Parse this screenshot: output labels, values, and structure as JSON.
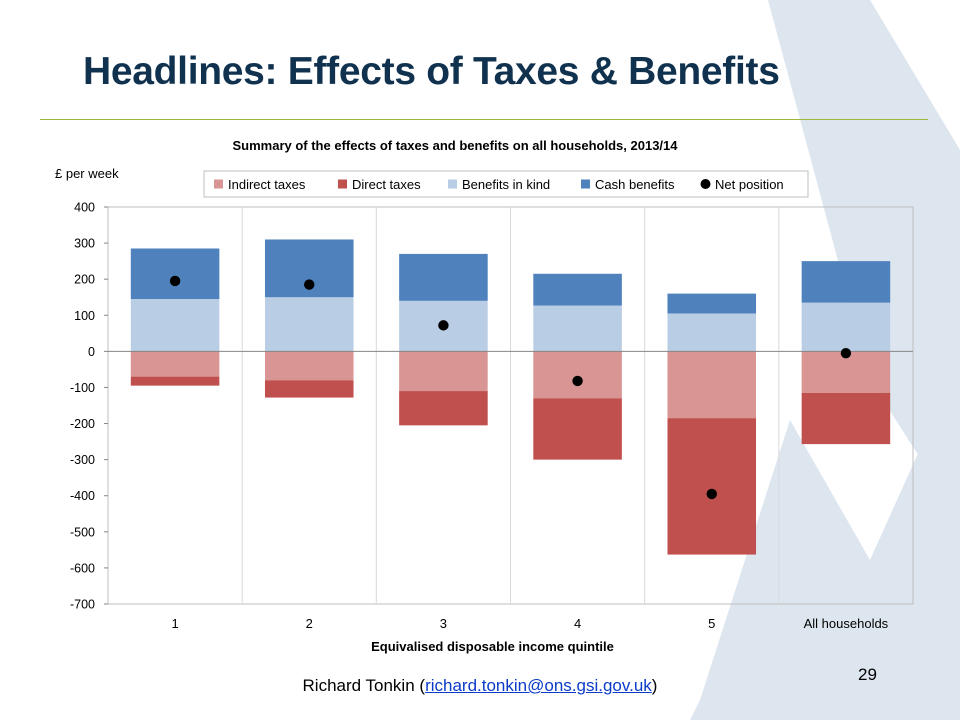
{
  "slide": {
    "title": "Headlines: Effects of Taxes & Benefits",
    "page_number": "29",
    "footer": {
      "author": "Richard Tonkin",
      "open_paren": " (",
      "email": "richard.tonkin@ons.gsi.gov.uk",
      "close_paren": ")"
    }
  },
  "colors": {
    "indirect_taxes": "#d99594",
    "direct_taxes": "#c0504d",
    "benefits_in_kind": "#b9cde5",
    "cash_benefits": "#4f81bd",
    "net_position": "#000000",
    "title": "#10324f",
    "rule": "#9bb83a",
    "background_mark": "#dde6ef"
  },
  "chart_data": {
    "type": "bar",
    "stacked": true,
    "title": "Summary of the effects of taxes and benefits on all households, 2013/14",
    "ylabel": "£ per week",
    "xlabel": "Equivalised disposable income quintile",
    "categories": [
      "1",
      "2",
      "3",
      "4",
      "5",
      "All households"
    ],
    "ylim": [
      -700,
      400
    ],
    "yticks": [
      400,
      300,
      200,
      100,
      0,
      -100,
      -200,
      -300,
      -400,
      -500,
      -600,
      -700
    ],
    "grid": "vertical category dividers",
    "legend_position": "top",
    "series": [
      {
        "name": "Indirect taxes",
        "key": "indirect_taxes",
        "values": [
          -70,
          -80,
          -110,
          -130,
          -185,
          -115
        ]
      },
      {
        "name": "Direct taxes",
        "key": "direct_taxes",
        "values": [
          -25,
          -48,
          -95,
          -170,
          -378,
          -142
        ]
      },
      {
        "name": "Benefits in kind",
        "key": "benefits_in_kind",
        "values": [
          145,
          150,
          140,
          127,
          105,
          135
        ]
      },
      {
        "name": "Cash benefits",
        "key": "cash_benefits",
        "values": [
          140,
          160,
          130,
          88,
          55,
          115
        ]
      },
      {
        "name": "Net position",
        "key": "net_position",
        "type": "scatter",
        "values": [
          195,
          185,
          72,
          -82,
          -395,
          -5
        ]
      }
    ]
  }
}
